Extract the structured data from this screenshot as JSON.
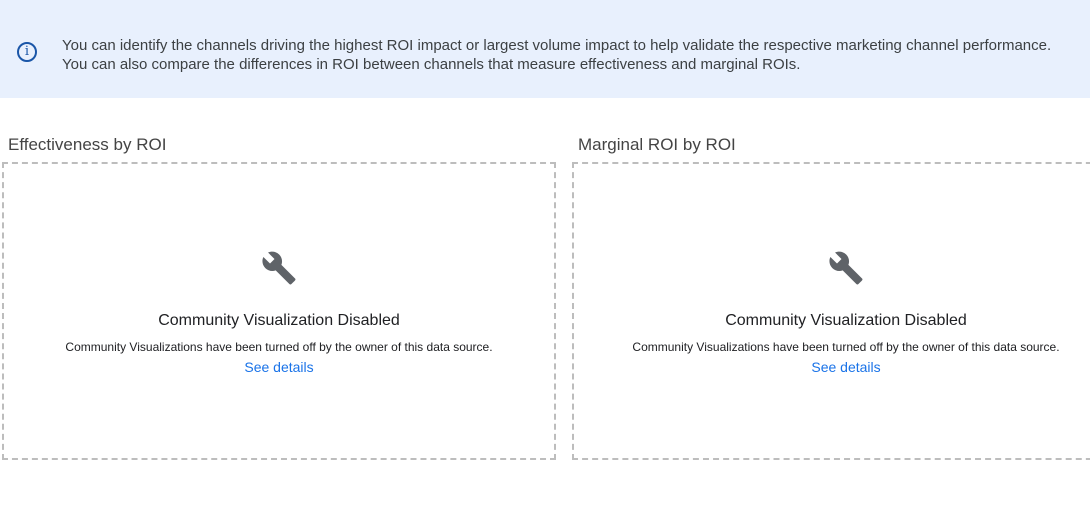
{
  "banner": {
    "icon": "info-icon",
    "text": "You can identify the channels driving the highest ROI impact or largest volume impact to help validate the respective marketing channel performance. You can also compare the differences in ROI between channels that measure effectiveness and marginal ROIs."
  },
  "panels": [
    {
      "title": "Effectiveness by ROI",
      "icon": "wrench-icon",
      "heading": "Community Visualization Disabled",
      "message": "Community Visualizations have been turned off by the owner of this data source.",
      "link": "See details"
    },
    {
      "title": "Marginal ROI by ROI",
      "icon": "wrench-icon",
      "heading": "Community Visualization Disabled",
      "message": "Community Visualizations have been turned off by the owner of this data source.",
      "link": "See details"
    }
  ]
}
